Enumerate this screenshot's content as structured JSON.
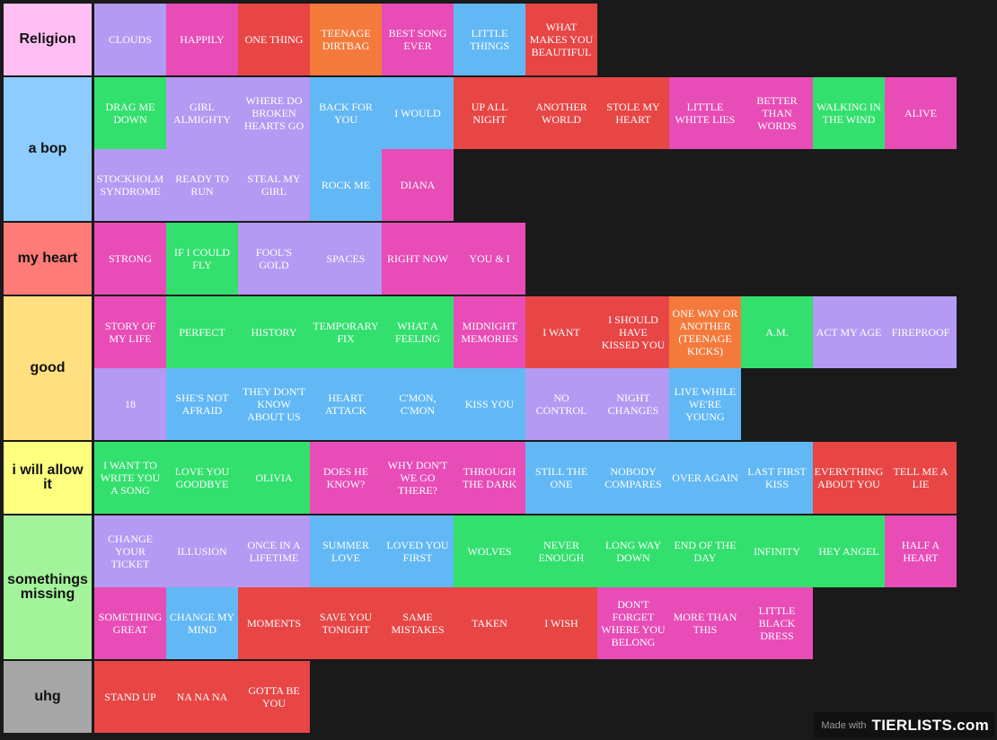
{
  "colors": {
    "background": "#1a1a1a",
    "purple": "#b49af3",
    "pink": "#e84cb6",
    "red": "#e84545",
    "orange": "#f47a3c",
    "blue": "#62b8f5",
    "green": "#33e06e"
  },
  "tiers": [
    {
      "label": "Religion",
      "color": "#ffbff3",
      "items": [
        {
          "text": "CLOUDS",
          "color": "purple"
        },
        {
          "text": "HAPPILY",
          "color": "pink"
        },
        {
          "text": "ONE THING",
          "color": "red"
        },
        {
          "text": "TEENAGE DIRTBAG",
          "color": "orange"
        },
        {
          "text": "BEST SONG EVER",
          "color": "pink"
        },
        {
          "text": "LITTLE THINGS",
          "color": "blue"
        },
        {
          "text": "WHAT MAKES YOU BEAUTIFUL",
          "color": "red"
        }
      ]
    },
    {
      "label": "a bop",
      "color": "#8ecbff",
      "items": [
        {
          "text": "DRAG ME DOWN",
          "color": "green"
        },
        {
          "text": "GIRL ALMIGHTY",
          "color": "purple"
        },
        {
          "text": "WHERE DO BROKEN HEARTS GO",
          "color": "purple"
        },
        {
          "text": "BACK FOR YOU",
          "color": "blue"
        },
        {
          "text": "I WOULD",
          "color": "blue"
        },
        {
          "text": "UP ALL NIGHT",
          "color": "red"
        },
        {
          "text": "ANOTHER WORLD",
          "color": "red"
        },
        {
          "text": "STOLE MY HEART",
          "color": "red"
        },
        {
          "text": "LITTLE WHITE LIES",
          "color": "pink"
        },
        {
          "text": "BETTER THAN WORDS",
          "color": "pink"
        },
        {
          "text": "WALKING IN THE WIND",
          "color": "green"
        },
        {
          "text": "ALIVE",
          "color": "pink"
        },
        {
          "text": "STOCKHOLM SYNDROME",
          "color": "purple"
        },
        {
          "text": "READY TO RUN",
          "color": "purple"
        },
        {
          "text": "STEAL MY GIRL",
          "color": "purple"
        },
        {
          "text": "ROCK ME",
          "color": "blue"
        },
        {
          "text": "DIANA",
          "color": "pink"
        }
      ]
    },
    {
      "label": "my heart",
      "color": "#ff7b77",
      "items": [
        {
          "text": "STRONG",
          "color": "pink"
        },
        {
          "text": "IF I COULD FLY",
          "color": "green"
        },
        {
          "text": "FOOL'S GOLD",
          "color": "purple"
        },
        {
          "text": "SPACES",
          "color": "purple"
        },
        {
          "text": "RIGHT NOW",
          "color": "pink"
        },
        {
          "text": "YOU & I",
          "color": "pink"
        }
      ]
    },
    {
      "label": "good",
      "color": "#ffdf80",
      "items": [
        {
          "text": "STORY OF MY LIFE",
          "color": "pink"
        },
        {
          "text": "PERFECT",
          "color": "green"
        },
        {
          "text": "HISTORY",
          "color": "green"
        },
        {
          "text": "TEMPORARY FIX",
          "color": "green"
        },
        {
          "text": "WHAT A FEELING",
          "color": "green"
        },
        {
          "text": "MIDNIGHT MEMORIES",
          "color": "pink"
        },
        {
          "text": "I WANT",
          "color": "red"
        },
        {
          "text": "I SHOULD HAVE KISSED YOU",
          "color": "red"
        },
        {
          "text": "ONE WAY OR ANOTHER (TEENAGE KICKS)",
          "color": "orange"
        },
        {
          "text": "A.M.",
          "color": "green"
        },
        {
          "text": "ACT MY AGE",
          "color": "purple"
        },
        {
          "text": "FIREPROOF",
          "color": "purple"
        },
        {
          "text": "18",
          "color": "purple"
        },
        {
          "text": "SHE'S NOT AFRAID",
          "color": "blue"
        },
        {
          "text": "THEY DON'T KNOW ABOUT US",
          "color": "blue"
        },
        {
          "text": "HEART ATTACK",
          "color": "blue"
        },
        {
          "text": "C'MON, C'MON",
          "color": "blue"
        },
        {
          "text": "KISS YOU",
          "color": "blue"
        },
        {
          "text": "NO CONTROL",
          "color": "purple"
        },
        {
          "text": "NIGHT CHANGES",
          "color": "purple"
        },
        {
          "text": "LIVE WHILE WE'RE YOUNG",
          "color": "blue"
        }
      ]
    },
    {
      "label": "i will allow it",
      "color": "#ffff7f",
      "items": [
        {
          "text": "I WANT TO WRITE YOU A SONG",
          "color": "green"
        },
        {
          "text": "LOVE YOU GOODBYE",
          "color": "green"
        },
        {
          "text": "OLIVIA",
          "color": "green"
        },
        {
          "text": "DOES HE KNOW?",
          "color": "pink"
        },
        {
          "text": "WHY DON'T WE GO THERE?",
          "color": "pink"
        },
        {
          "text": "THROUGH THE DARK",
          "color": "pink"
        },
        {
          "text": "STILL THE ONE",
          "color": "blue"
        },
        {
          "text": "NOBODY COMPARES",
          "color": "blue"
        },
        {
          "text": "OVER AGAIN",
          "color": "blue"
        },
        {
          "text": "LAST FIRST KISS",
          "color": "blue"
        },
        {
          "text": "EVERYTHING ABOUT YOU",
          "color": "red"
        },
        {
          "text": "TELL ME A LIE",
          "color": "red"
        }
      ]
    },
    {
      "label": "somethings missing",
      "color": "#a2f39a",
      "items": [
        {
          "text": "CHANGE YOUR TICKET",
          "color": "purple"
        },
        {
          "text": "ILLUSION",
          "color": "purple"
        },
        {
          "text": "ONCE IN A LIFETIME",
          "color": "purple"
        },
        {
          "text": "SUMMER LOVE",
          "color": "blue"
        },
        {
          "text": "LOVED YOU FIRST",
          "color": "blue"
        },
        {
          "text": "WOLVES",
          "color": "green"
        },
        {
          "text": "NEVER ENOUGH",
          "color": "green"
        },
        {
          "text": "LONG WAY DOWN",
          "color": "green"
        },
        {
          "text": "END OF THE DAY",
          "color": "green"
        },
        {
          "text": "INFINITY",
          "color": "green"
        },
        {
          "text": "HEY ANGEL",
          "color": "green"
        },
        {
          "text": "HALF A HEART",
          "color": "pink"
        },
        {
          "text": "SOMETHING GREAT",
          "color": "pink"
        },
        {
          "text": "CHANGE MY MIND",
          "color": "blue"
        },
        {
          "text": "MOMENTS",
          "color": "red"
        },
        {
          "text": "SAVE YOU TONIGHT",
          "color": "red"
        },
        {
          "text": "SAME MISTAKES",
          "color": "red"
        },
        {
          "text": "TAKEN",
          "color": "red"
        },
        {
          "text": "I WISH",
          "color": "red"
        },
        {
          "text": "DON'T FORGET WHERE YOU BELONG",
          "color": "pink"
        },
        {
          "text": "MORE THAN THIS",
          "color": "pink"
        },
        {
          "text": "LITTLE BLACK DRESS",
          "color": "pink"
        }
      ]
    },
    {
      "label": "uhg",
      "color": "#a6a6a6",
      "items": [
        {
          "text": "STAND UP",
          "color": "red"
        },
        {
          "text": "NA NA NA",
          "color": "red"
        },
        {
          "text": "GOTTA BE YOU",
          "color": "red"
        }
      ]
    }
  ],
  "watermark": {
    "made_with": "Made with",
    "logo": "TIERLISTS.com"
  }
}
